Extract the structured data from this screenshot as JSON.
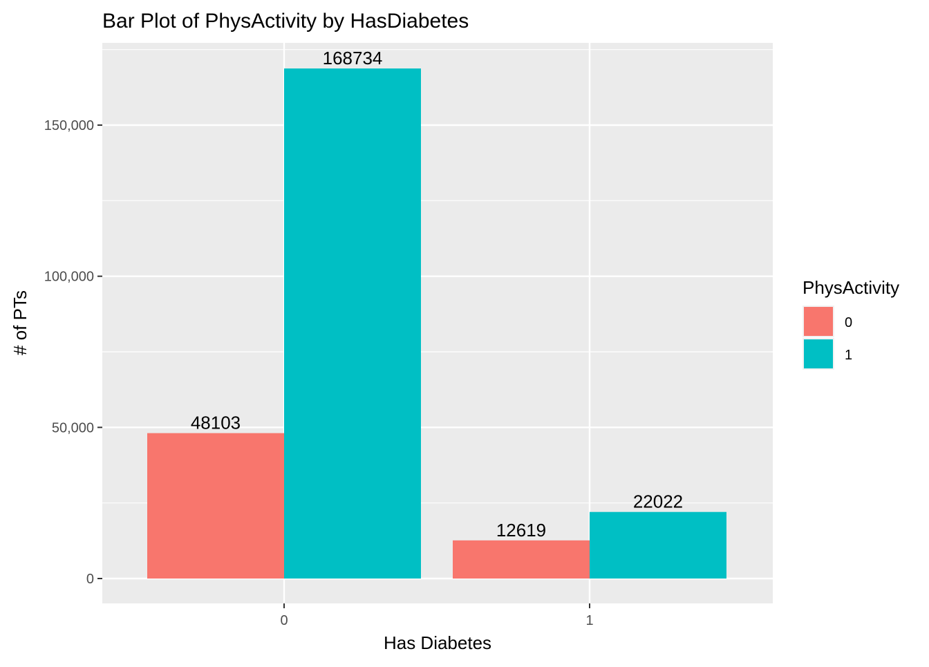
{
  "chart_data": {
    "type": "bar",
    "title": "Bar Plot of PhysActivity by HasDiabetes",
    "xlabel": "Has Diabetes",
    "ylabel": "# of PTs",
    "categories": [
      "0",
      "1"
    ],
    "ylim": [
      0,
      177000
    ],
    "yticks": [
      0,
      50000,
      100000,
      150000
    ],
    "ytick_labels": [
      "0",
      "50,000",
      "100,000",
      "150,000"
    ],
    "grid": true,
    "legend": {
      "title": "PhysActivity",
      "position": "right",
      "entries": [
        "0",
        "1"
      ]
    },
    "series": [
      {
        "name": "0",
        "color": "#F8766D",
        "values": [
          48103,
          12619
        ]
      },
      {
        "name": "1",
        "color": "#00BFC4",
        "values": [
          168734,
          22022
        ]
      }
    ],
    "data_labels": [
      [
        "48103",
        "12619"
      ],
      [
        "168734",
        "22022"
      ]
    ]
  }
}
